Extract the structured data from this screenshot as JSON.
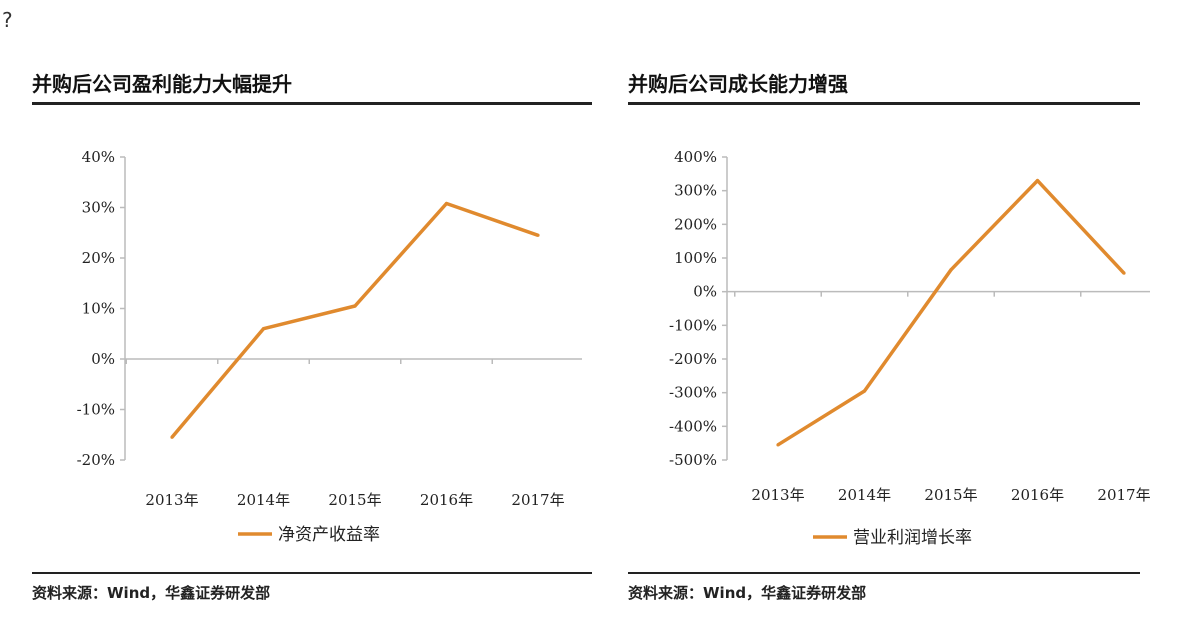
{
  "corner_mark": "?",
  "panels": [
    {
      "title": "并购后公司盈利能力大幅提升",
      "source": "资料来源：Wind，华鑫证券研发部"
    },
    {
      "title": "并购后公司成长能力增强",
      "source": "资料来源：Wind，华鑫证券研发部"
    }
  ],
  "chart_data": [
    {
      "type": "line",
      "title": "",
      "categories": [
        "2013年",
        "2014年",
        "2015年",
        "2016年",
        "2017年"
      ],
      "series": [
        {
          "name": "净资产收益率",
          "values": [
            -15.5,
            6,
            10.5,
            30.8,
            24.5
          ],
          "color": "#e08a2e"
        }
      ],
      "yticks": [
        "40%",
        "30%",
        "20%",
        "10%",
        "0%",
        "-10%",
        "-20%"
      ],
      "ylim": [
        -20,
        40
      ],
      "grid": false,
      "legend": "bottom"
    },
    {
      "type": "line",
      "title": "",
      "categories": [
        "2013年",
        "2014年",
        "2015年",
        "2016年",
        "2017年"
      ],
      "series": [
        {
          "name": "营业利润增长率",
          "values": [
            -455,
            -295,
            65,
            330,
            55
          ],
          "color": "#e08a2e"
        }
      ],
      "yticks": [
        "400%",
        "300%",
        "200%",
        "100%",
        "0%",
        "-100%",
        "-200%",
        "-300%",
        "-400%",
        "-500%"
      ],
      "ylim": [
        -500,
        400
      ],
      "grid": false,
      "legend": "bottom"
    }
  ]
}
